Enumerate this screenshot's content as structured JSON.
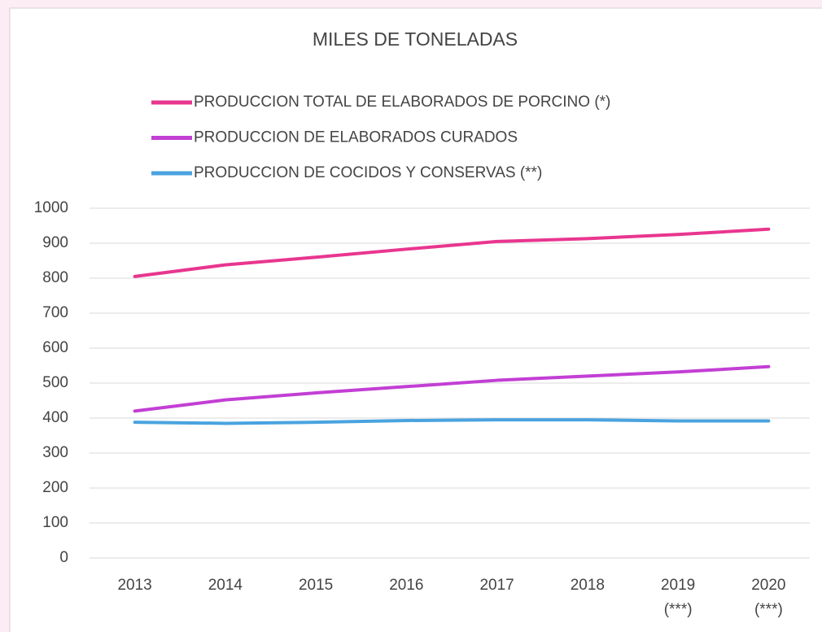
{
  "chart_data": {
    "type": "line",
    "title": "MILES DE TONELADAS",
    "categories": [
      "2013",
      "2014",
      "2015",
      "2016",
      "2017",
      "2018",
      "2019\n(***)",
      "2020\n(***)"
    ],
    "series": [
      {
        "name": "PRODUCCION TOTAL DE ELABORADOS DE PORCINO (*)",
        "color": "#e8368f",
        "values": [
          805,
          838,
          860,
          883,
          905,
          913,
          925,
          940
        ]
      },
      {
        "name": "PRODUCCION DE ELABORADOS CURADOS",
        "color": "#c23fd4",
        "values": [
          420,
          452,
          472,
          490,
          508,
          520,
          532,
          547
        ]
      },
      {
        "name": "PRODUCCION DE COCIDOS Y CONSERVAS  (**)",
        "color": "#4aa3df",
        "values": [
          388,
          385,
          388,
          393,
          395,
          395,
          392,
          392
        ]
      }
    ],
    "ylim": [
      0,
      1000
    ],
    "yticks": [
      0,
      100,
      200,
      300,
      400,
      500,
      600,
      700,
      800,
      900,
      1000
    ],
    "grid": true,
    "legend": "top"
  }
}
